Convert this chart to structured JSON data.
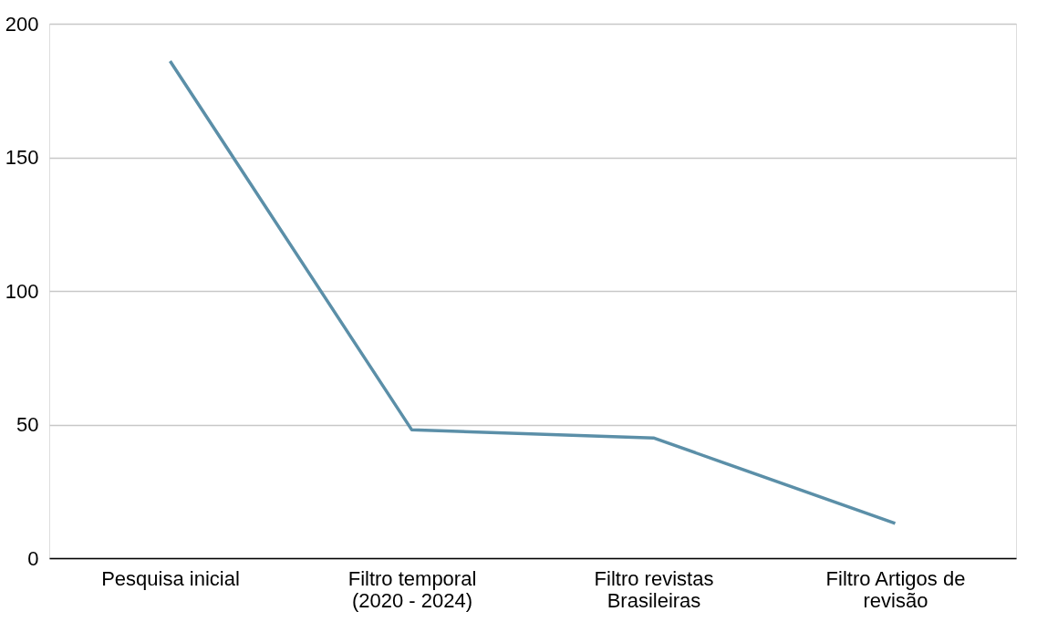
{
  "chart_data": {
    "type": "line",
    "categories": [
      "Pesquisa inicial",
      "Filtro temporal (2020 - 2024)",
      "Filtro revistas Brasileiras",
      "Filtro Artigos de revisão"
    ],
    "series": [
      {
        "color": "#5b8fa8",
        "values": [
          186,
          48,
          45,
          13
        ]
      }
    ],
    "ylim": [
      0,
      200
    ],
    "yticks": [
      0,
      50,
      100,
      150,
      200
    ],
    "grid": "y",
    "marker": "none",
    "line_style": "solid"
  }
}
